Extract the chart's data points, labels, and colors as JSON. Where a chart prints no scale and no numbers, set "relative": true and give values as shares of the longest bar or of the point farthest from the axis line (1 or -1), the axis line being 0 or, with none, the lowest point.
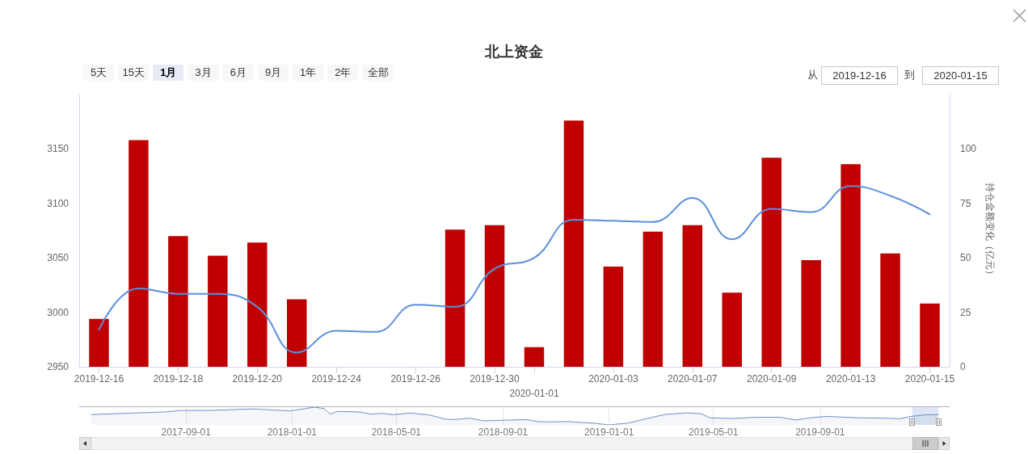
{
  "chart_data": [
    {
      "type": "bar",
      "title": "北上资金",
      "y2label": "持仓金额变化（亿元）",
      "categories": [
        "2019-12-16",
        null,
        "2019-12-18",
        null,
        "2019-12-20",
        null,
        "2019-12-24",
        null,
        "2019-12-26",
        null,
        "2019-12-30",
        "2020-01-01",
        null,
        "2020-01-03",
        null,
        "2020-01-07",
        null,
        "2020-01-09",
        null,
        "2020-01-13",
        null,
        "2020-01-15"
      ],
      "series": [
        {
          "axis": "y2",
          "color": "#c00000",
          "values": [
            22,
            104,
            60,
            51,
            57,
            31,
            null,
            null,
            null,
            63,
            65,
            9,
            113,
            46,
            62,
            65,
            34,
            96,
            49,
            93,
            52,
            29
          ]
        },
        {
          "type": "line",
          "color": "#5b8fdc",
          "values": [
            2984,
            3022,
            3017,
            3017,
            3005,
            2963,
            2983,
            2982,
            3007,
            3005,
            3040,
            3050,
            3085,
            3084,
            3083,
            3105,
            3067,
            3095,
            3092,
            3116,
            3107,
            3090
          ]
        }
      ],
      "ylim": [
        2950,
        3200
      ],
      "yticks": [
        2950,
        3000,
        3050,
        3100,
        3150
      ],
      "y2lim": [
        0,
        125
      ],
      "y2ticks": [
        0,
        25,
        50,
        75,
        100
      ],
      "marker": "none",
      "line_style": "solid",
      "annotations": [
        "5天",
        "15天",
        "1月",
        "3月",
        "6月",
        "9月",
        "1年",
        "2年",
        "全部",
        "从",
        "2019-12-16",
        "到",
        "2020-01-15"
      ]
    },
    {
      "type": "area",
      "relative": true,
      "color": "#6f8fc4",
      "x": [
        "2017-05-15",
        "2017-05-29",
        "2017-07-15",
        "2017-08-08",
        "2017-08-25",
        "2017-10-01",
        "2017-11-17",
        "2017-12-30",
        "2018-01-27",
        "2018-02-07",
        "2018-02-14",
        "2018-02-22",
        "2018-03-19",
        "2018-04-02",
        "2018-04-16",
        "2018-04-27",
        "2018-05-18",
        "2018-06-09",
        "2018-06-27",
        "2018-07-07",
        "2018-07-25",
        "2018-08-09",
        "2018-08-31",
        "2018-09-28",
        "2018-10-12",
        "2018-10-24",
        "2018-11-14",
        "2018-11-29",
        "2018-12-16",
        "2019-01-01",
        "2019-01-24",
        "2019-02-17",
        "2019-03-07",
        "2019-03-31",
        "2019-04-17",
        "2019-04-27",
        "2019-05-22",
        "2019-06-19",
        "2019-07-17",
        "2019-08-04",
        "2019-08-21",
        "2019-09-08",
        "2019-10-15",
        "2019-11-15",
        "2019-12-02",
        "2019-12-16",
        "2020-01-02",
        "2020-01-15"
      ],
      "values": [
        0.58,
        0.61,
        0.69,
        0.73,
        0.81,
        0.82,
        0.9,
        0.79,
        1,
        0.92,
        0.61,
        0.76,
        0.73,
        0.61,
        0.65,
        0.58,
        0.67,
        0.55,
        0.32,
        0.3,
        0.38,
        0.23,
        0.26,
        0.3,
        0.18,
        0.17,
        0.19,
        0.14,
        0.09,
        0,
        0.11,
        0.4,
        0.59,
        0.68,
        0.63,
        0.4,
        0.36,
        0.43,
        0.43,
        0.28,
        0.4,
        0.48,
        0.4,
        0.38,
        0.35,
        0.49,
        0.57,
        0.58
      ],
      "xlim": [
        "2017-05-01",
        "2020-01-28"
      ],
      "xticks": [
        "2017-09-01",
        "2018-01-01",
        "2018-05-01",
        "2018-09-01",
        "2019-01-01",
        "2019-05-01",
        "2019-09-01"
      ],
      "grid": "x",
      "bands": [
        {
          "axis": "x",
          "from": "2019-12-16",
          "to": "2020-01-15",
          "color": "#cddcf0"
        }
      ]
    }
  ]
}
